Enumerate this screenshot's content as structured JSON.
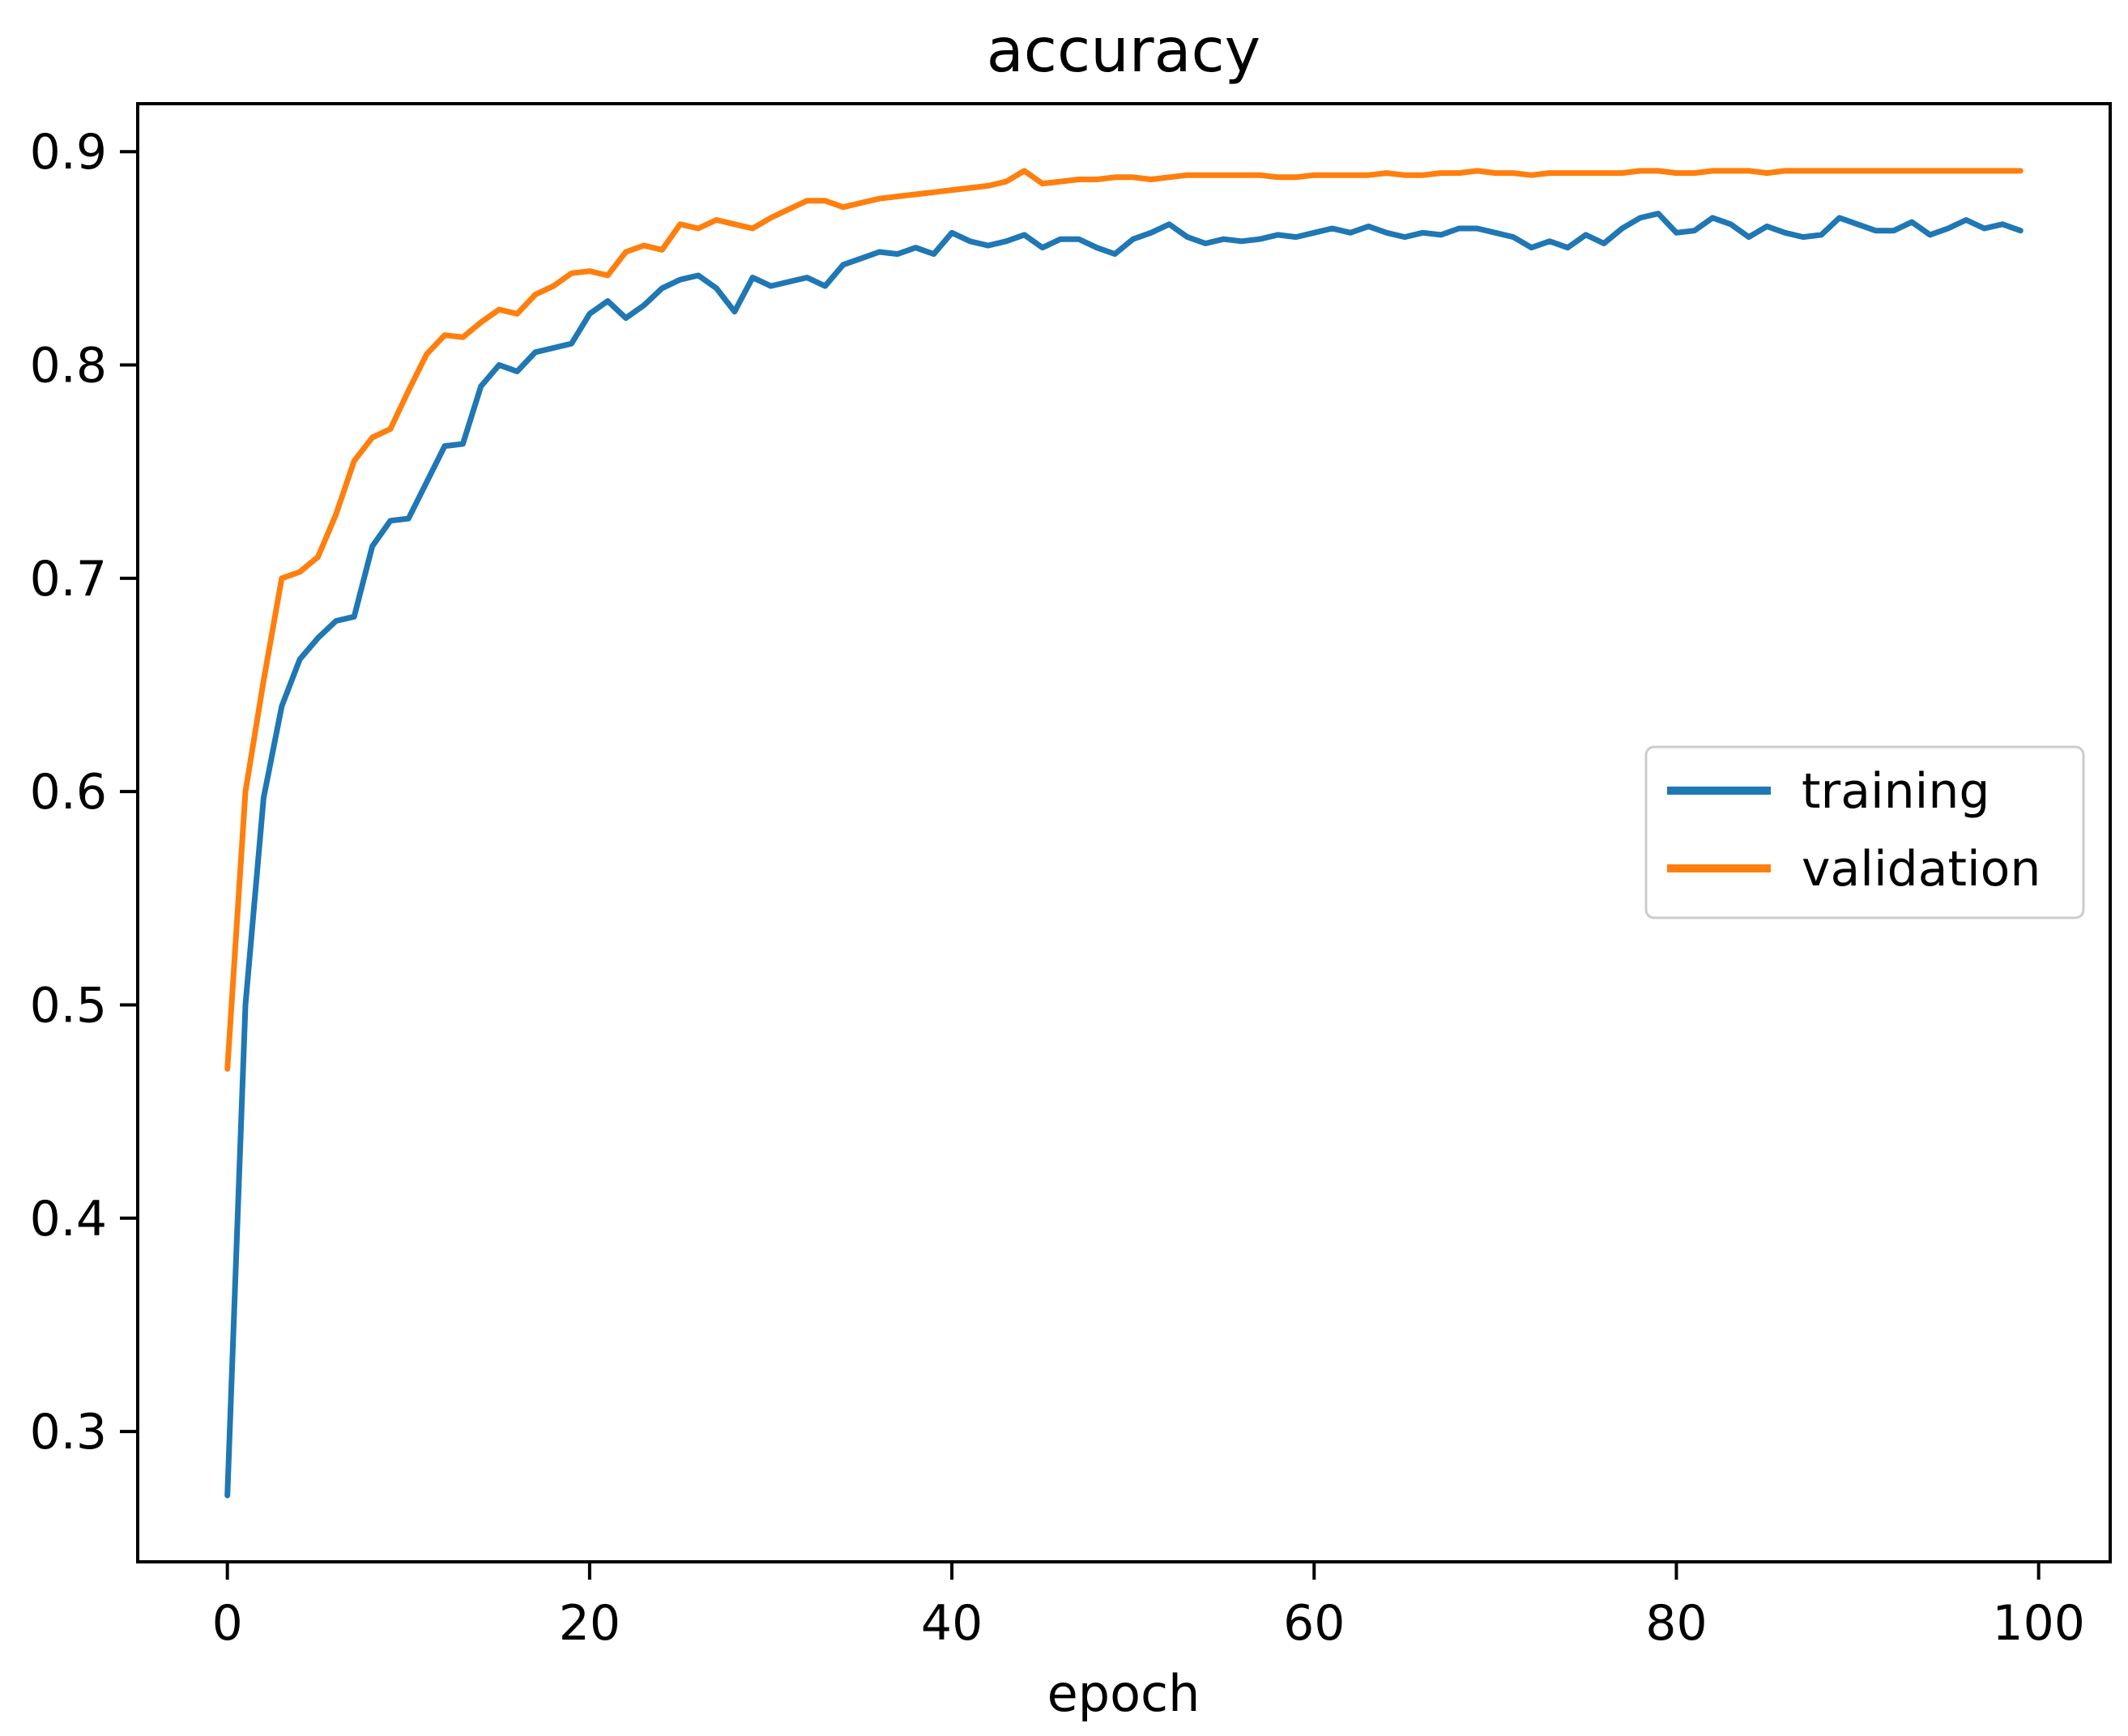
{
  "chart_data": {
    "type": "line",
    "title": "accuracy",
    "xlabel": "epoch",
    "ylabel": "",
    "grid": false,
    "x_tick_labels": [
      "0",
      "20",
      "40",
      "60",
      "80",
      "100"
    ],
    "x_tick_values": [
      0,
      20,
      40,
      60,
      80,
      100
    ],
    "y_tick_labels": [
      "0.3",
      "0.4",
      "0.5",
      "0.6",
      "0.7",
      "0.8",
      "0.9"
    ],
    "y_tick_values": [
      0.3,
      0.4,
      0.5,
      0.6,
      0.7,
      0.8,
      0.9
    ],
    "xlim": [
      -4.95,
      103.95
    ],
    "ylim": [
      0.2389,
      0.9225
    ],
    "x0": 0,
    "dx": 1,
    "legend": {
      "position": "center right",
      "entries": [
        "training",
        "validation"
      ]
    },
    "series": [
      {
        "name": "training",
        "color": "#1f77b4",
        "values": [
          0.27,
          0.5,
          0.597,
          0.64,
          0.662,
          0.672,
          0.68,
          0.682,
          0.715,
          0.727,
          0.728,
          0.745,
          0.762,
          0.763,
          0.79,
          0.8,
          0.797,
          0.806,
          0.808,
          0.81,
          0.824,
          0.83,
          0.822,
          0.828,
          0.836,
          0.84,
          0.842,
          0.836,
          0.825,
          0.841,
          0.837,
          0.839,
          0.841,
          0.837,
          0.847,
          0.85,
          0.853,
          0.852,
          0.855,
          0.852,
          0.862,
          0.858,
          0.856,
          0.858,
          0.861,
          0.855,
          0.859,
          0.859,
          0.855,
          0.852,
          0.859,
          0.862,
          0.866,
          0.86,
          0.857,
          0.859,
          0.858,
          0.859,
          0.861,
          0.86,
          0.862,
          0.864,
          0.862,
          0.865,
          0.862,
          0.86,
          0.862,
          0.861,
          0.864,
          0.864,
          0.862,
          0.86,
          0.855,
          0.858,
          0.855,
          0.861,
          0.857,
          0.864,
          0.869,
          0.871,
          0.862,
          0.863,
          0.869,
          0.866,
          0.86,
          0.865,
          0.862,
          0.86,
          0.861,
          0.869,
          0.866,
          0.863,
          0.863,
          0.867,
          0.861,
          0.864,
          0.868,
          0.864,
          0.866,
          0.863
        ]
      },
      {
        "name": "validation",
        "color": "#ff7f0e",
        "values": [
          0.47,
          0.6,
          0.652,
          0.7,
          0.703,
          0.71,
          0.73,
          0.755,
          0.766,
          0.77,
          0.788,
          0.805,
          0.814,
          0.813,
          0.82,
          0.826,
          0.824,
          0.833,
          0.837,
          0.843,
          0.844,
          0.842,
          0.853,
          0.856,
          0.854,
          0.866,
          0.864,
          0.868,
          0.866,
          0.864,
          0.869,
          0.873,
          0.877,
          0.877,
          0.874,
          0.876,
          0.878,
          0.879,
          0.88,
          0.881,
          0.882,
          0.883,
          0.884,
          0.886,
          0.891,
          0.885,
          0.886,
          0.887,
          0.887,
          0.888,
          0.888,
          0.887,
          0.888,
          0.889,
          0.889,
          0.889,
          0.889,
          0.889,
          0.888,
          0.888,
          0.889,
          0.889,
          0.889,
          0.889,
          0.89,
          0.889,
          0.889,
          0.89,
          0.89,
          0.891,
          0.89,
          0.89,
          0.889,
          0.89,
          0.89,
          0.89,
          0.89,
          0.89,
          0.891,
          0.891,
          0.89,
          0.89,
          0.891,
          0.891,
          0.891,
          0.89,
          0.891,
          0.891,
          0.891,
          0.891,
          0.891,
          0.891,
          0.891,
          0.891,
          0.891,
          0.891,
          0.891,
          0.891,
          0.891,
          0.891
        ]
      }
    ]
  }
}
